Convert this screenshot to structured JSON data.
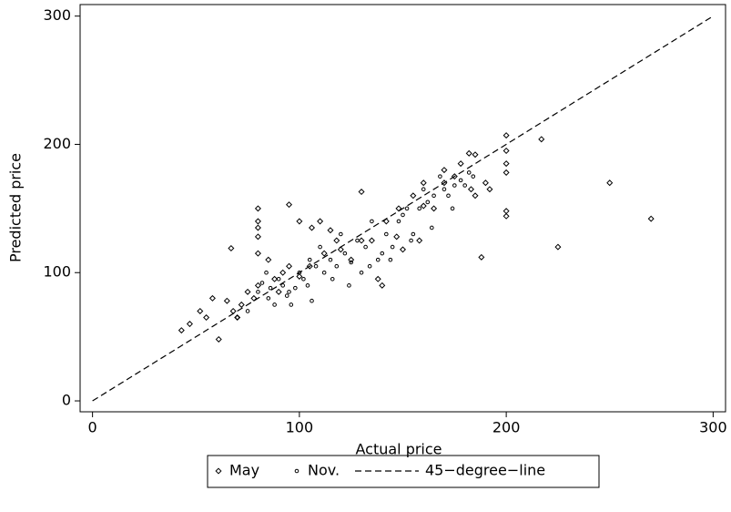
{
  "chart_data": {
    "type": "scatter",
    "x_label": "Actual price",
    "y_label": "Predicted price",
    "xlim": [
      -6,
      306
    ],
    "ylim": [
      -8.5,
      309
    ],
    "xticks": [
      0,
      100,
      200,
      300
    ],
    "yticks": [
      0,
      100,
      200,
      300
    ],
    "grid": false,
    "legend": "bottom",
    "series": [
      {
        "name": "May",
        "color": "#000000",
        "marker": "diamond",
        "x": [
          250,
          270,
          225,
          188,
          217,
          200,
          200,
          200,
          200,
          200,
          200,
          43,
          47,
          52,
          55,
          58,
          61,
          67,
          80,
          80,
          80,
          80,
          80,
          95,
          110,
          130,
          148,
          160,
          175,
          182,
          185,
          185,
          183,
          170,
          165,
          158,
          150,
          147,
          140,
          138,
          130,
          125,
          120,
          115,
          106,
          100,
          92,
          88,
          85,
          80,
          75,
          72,
          68,
          65,
          70,
          78,
          90,
          95,
          100,
          105,
          112,
          118,
          135,
          142,
          155,
          160,
          170,
          178,
          190,
          192
        ],
        "values": [
          170,
          142,
          120,
          112,
          204,
          207,
          195,
          185,
          178,
          148,
          144,
          55,
          60,
          70,
          65,
          80,
          48,
          119,
          150,
          140,
          135,
          128,
          115,
          153,
          140,
          163,
          150,
          170,
          175,
          193,
          192,
          160,
          165,
          180,
          150,
          125,
          118,
          128,
          90,
          95,
          125,
          110,
          118,
          133,
          135,
          140,
          100,
          95,
          110,
          90,
          85,
          75,
          70,
          78,
          65,
          80,
          85,
          105,
          97,
          105,
          115,
          125,
          125,
          140,
          160,
          152,
          170,
          185,
          170,
          165
        ]
      },
      {
        "name": "Nov.",
        "color": "#000000",
        "marker": "circle",
        "x": [
          70,
          75,
          80,
          82,
          85,
          88,
          90,
          92,
          95,
          98,
          100,
          102,
          105,
          108,
          110,
          112,
          115,
          118,
          120,
          122,
          125,
          128,
          130,
          132,
          135,
          138,
          140,
          142,
          145,
          148,
          150,
          152,
          155,
          158,
          160,
          162,
          165,
          168,
          170,
          172,
          175,
          178,
          180,
          182,
          84,
          86,
          94,
          96,
          104,
          106,
          116,
          124,
          134,
          144,
          154,
          164,
          174,
          184
        ],
        "values": [
          65,
          70,
          85,
          92,
          80,
          75,
          95,
          90,
          85,
          88,
          100,
          95,
          110,
          105,
          120,
          100,
          110,
          105,
          130,
          115,
          108,
          125,
          100,
          120,
          140,
          110,
          115,
          130,
          120,
          140,
          145,
          150,
          130,
          150,
          165,
          155,
          160,
          175,
          165,
          160,
          168,
          172,
          168,
          178,
          100,
          88,
          82,
          75,
          90,
          78,
          95,
          90,
          105,
          110,
          125,
          135,
          150,
          175
        ]
      },
      {
        "name": "45−degree−line",
        "color": "#000000",
        "marker": "dashed-line",
        "x": [
          0,
          300
        ],
        "values": [
          0,
          300
        ]
      }
    ]
  }
}
